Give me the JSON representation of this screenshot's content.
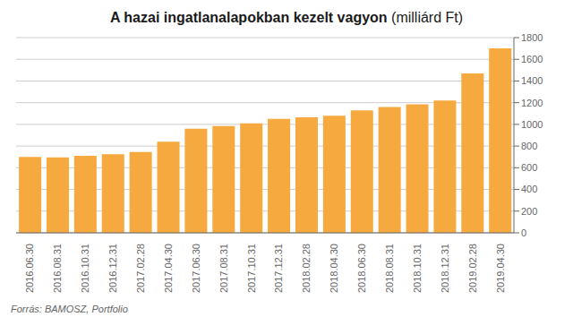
{
  "chart_data": {
    "type": "bar",
    "title": "A hazai ingatlanalapokban kezelt vagyon",
    "subtitle": "(milliárd Ft)",
    "annotations": [
      "Forrás: BAMOSZ, Portfolio"
    ],
    "categories": [
      "2016.06.30",
      "2016.08.31",
      "2016.10.31",
      "2016.12.31",
      "2017.02.28",
      "2017.04.30",
      "2017.06.30",
      "2017.08.31",
      "2017.10.31",
      "2017.12.31",
      "2018.02.28",
      "2018.04.30",
      "2018.06.30",
      "2018.08.31",
      "2018.10.31",
      "2018.12.31",
      "2019.02.28",
      "2019.04.30"
    ],
    "values": [
      700,
      695,
      710,
      725,
      745,
      840,
      960,
      985,
      1010,
      1050,
      1065,
      1080,
      1130,
      1160,
      1185,
      1220,
      1470,
      1700
    ],
    "color": "#F5A93E",
    "ylim": [
      0,
      1800
    ],
    "yticks": [
      0,
      200,
      400,
      600,
      800,
      1000,
      1200,
      1400,
      1600,
      1800
    ],
    "grid": true
  }
}
